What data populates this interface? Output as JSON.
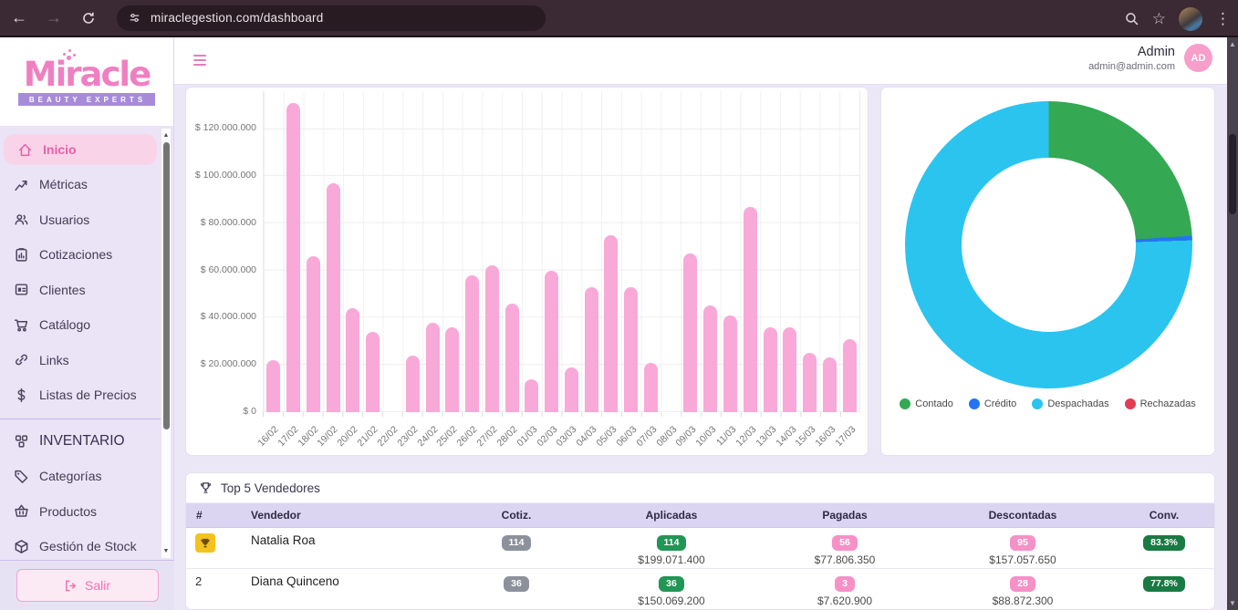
{
  "browser": {
    "url": "miraclegestion.com/dashboard"
  },
  "sidebar": {
    "logo": {
      "title": "Miracle",
      "subtitle": "BEAUTY EXPERTS"
    },
    "items": [
      {
        "label": "Inicio",
        "icon": "home",
        "active": true
      },
      {
        "label": "Métricas",
        "icon": "metrics"
      },
      {
        "label": "Usuarios",
        "icon": "users"
      },
      {
        "label": "Cotizaciones",
        "icon": "quotes"
      },
      {
        "label": "Clientes",
        "icon": "clients"
      },
      {
        "label": "Catálogo",
        "icon": "cart"
      },
      {
        "label": "Links",
        "icon": "link"
      },
      {
        "label": "Listas de Precios",
        "icon": "dollar"
      },
      {
        "divider": true
      },
      {
        "label": "INVENTARIO",
        "icon": "inventory",
        "section": true
      },
      {
        "label": "Categorías",
        "icon": "tag"
      },
      {
        "label": "Productos",
        "icon": "basket"
      },
      {
        "label": "Gestión de Stock",
        "icon": "package"
      }
    ],
    "logout_label": "Salir"
  },
  "header": {
    "user_name": "Admin",
    "user_email": "admin@admin.com",
    "avatar_initials": "AD"
  },
  "chart_data": [
    {
      "type": "bar",
      "title": "",
      "categories": [
        "16/02",
        "17/02",
        "18/02",
        "19/02",
        "20/02",
        "21/02",
        "22/02",
        "23/02",
        "24/02",
        "25/02",
        "26/02",
        "27/02",
        "28/02",
        "01/03",
        "02/03",
        "03/03",
        "04/03",
        "05/03",
        "06/03",
        "07/03",
        "08/03",
        "09/03",
        "10/03",
        "11/03",
        "12/03",
        "13/03",
        "14/03",
        "15/03",
        "16/03",
        "17/03"
      ],
      "values": [
        22000000,
        131000000,
        66000000,
        97000000,
        44000000,
        34000000,
        0,
        24000000,
        38000000,
        36000000,
        58000000,
        62000000,
        46000000,
        14000000,
        60000000,
        19000000,
        53000000,
        75000000,
        53000000,
        21000000,
        0,
        67000000,
        45000000,
        41000000,
        87000000,
        36000000,
        36000000,
        25000000,
        23000000,
        31000000
      ],
      "xlabel": "",
      "ylabel": "",
      "ylim": [
        0,
        135000000
      ],
      "yticks": [
        "$ 0",
        "$ 20.000.000",
        "$ 40.000.000",
        "$ 60.000.000",
        "$ 80.000.000",
        "$ 100.000.000",
        "$ 120.000.000"
      ],
      "ytick_values": [
        0,
        20000000,
        40000000,
        60000000,
        80000000,
        100000000,
        120000000
      ],
      "grid": true,
      "bar_color": "#f8a9d8",
      "legend_position": "none"
    },
    {
      "type": "pie",
      "donut": true,
      "labels": [
        "Contado",
        "Crédito",
        "Despachadas",
        "Rechazadas"
      ],
      "values_pct": [
        24.0,
        0.5,
        75.5,
        0
      ],
      "colors": [
        "#34a853",
        "#2374f2",
        "#2ac4ef",
        "#e23b54"
      ],
      "legend_position": "bottom"
    }
  ],
  "table": {
    "title": "Top 5 Vendedores",
    "columns": [
      "#",
      "Vendedor",
      "Cotiz.",
      "Aplicadas",
      "Pagadas",
      "Descontadas",
      "Conv."
    ],
    "rows": [
      {
        "rank": "1",
        "trophy": true,
        "vendedor": "Natalia Roa",
        "cotiz": "114",
        "aplicadas_count": "114",
        "aplicadas_amount": "$199.071.400",
        "pagadas_count": "56",
        "pagadas_amount": "$77.806.350",
        "descontadas_count": "95",
        "descontadas_amount": "$157.057.650",
        "conv": "83.3%"
      },
      {
        "rank": "2",
        "trophy": false,
        "vendedor": "Diana Quinceno",
        "cotiz": "36",
        "aplicadas_count": "36",
        "aplicadas_amount": "$150.069.200",
        "pagadas_count": "3",
        "pagadas_amount": "$7.620.900",
        "descontadas_count": "28",
        "descontadas_amount": "$88.872.300",
        "conv": "77.8%"
      }
    ]
  },
  "colors": {
    "accent_pink": "#ea5fa7",
    "bar_pink": "#f8a9d8",
    "badge_gray": "#8c919b",
    "badge_green": "#219655",
    "badge_pink": "#f591c6",
    "badge_darkgreen": "#197a43",
    "trophy_gold": "#f4c21d"
  }
}
